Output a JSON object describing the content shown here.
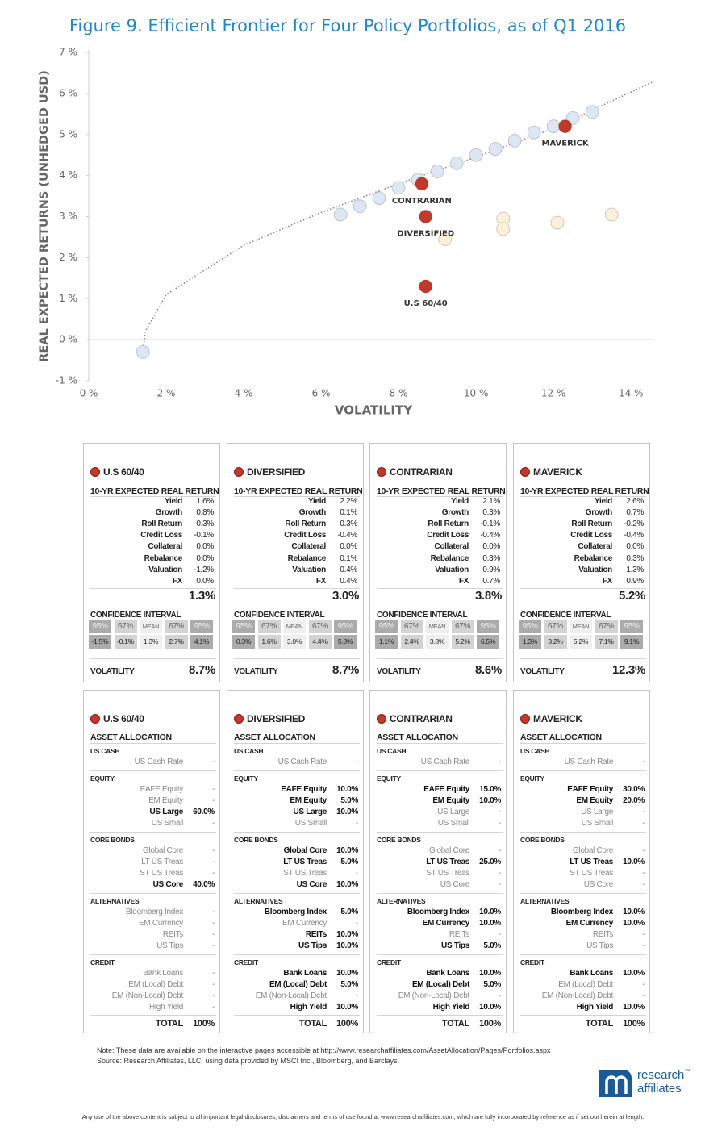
{
  "chart_data": {
    "type": "scatter",
    "title": "Figure 9. Efficient Frontier for Four Policy Portfolios, as of Q1 2016",
    "x_label": "VOLATILITY",
    "y_label": "REAL EXPECTED RETURNS (UNHEDGED USD)",
    "xlim": [
      0,
      14.6
    ],
    "ylim": [
      -1,
      7
    ],
    "xticks": [
      {
        "value": 0,
        "label": "0 %"
      },
      {
        "value": 2,
        "label": "2 %"
      },
      {
        "value": 4,
        "label": "4 %"
      },
      {
        "value": 6,
        "label": "6 %"
      },
      {
        "value": 8,
        "label": "8 %"
      },
      {
        "value": 10,
        "label": "10 %"
      },
      {
        "value": 12,
        "label": "12 %"
      },
      {
        "value": 14,
        "label": "14 %"
      }
    ],
    "yticks": [
      {
        "value": -1,
        "label": "-1 %"
      },
      {
        "value": 0,
        "label": "0 %"
      },
      {
        "value": 1,
        "label": "1 %"
      },
      {
        "value": 2,
        "label": "2 %"
      },
      {
        "value": 3,
        "label": "3 %"
      },
      {
        "value": 4,
        "label": "4 %"
      },
      {
        "value": 5,
        "label": "5 %"
      },
      {
        "value": 6,
        "label": "6 %"
      },
      {
        "value": 7,
        "label": "7 %"
      }
    ],
    "grid": false,
    "series": [
      {
        "mark": "line",
        "color": "#8a8a8a",
        "x": [
          1.4,
          1.46,
          2,
          4,
          6,
          8,
          10,
          12,
          14.6
        ],
        "values": [
          -0.3,
          0.2,
          1.1,
          2.3,
          3.1,
          3.8,
          4.45,
          5.15,
          6.3
        ]
      },
      {
        "mark": "point",
        "color": "#dce7f3",
        "x": [
          1.4,
          6.5,
          7,
          7.5,
          8,
          8.5,
          9,
          9.5,
          10,
          10.5,
          11,
          11.5,
          12,
          12.5,
          13
        ],
        "values": [
          -0.3,
          3.05,
          3.25,
          3.45,
          3.7,
          3.9,
          4.1,
          4.3,
          4.5,
          4.65,
          4.85,
          5.05,
          5.2,
          5.4,
          5.55
        ]
      },
      {
        "mark": "point",
        "color": "#fdf0d8",
        "x": [
          9.2,
          10.7,
          10.7,
          12.1,
          13.5
        ],
        "values": [
          2.45,
          2.95,
          2.7,
          2.85,
          3.05
        ]
      },
      {
        "mark": "point",
        "color": "#c0392b",
        "x": [
          8.7,
          8.7,
          8.6,
          12.3
        ],
        "values": [
          1.3,
          3.0,
          3.8,
          5.2
        ],
        "labels": [
          "U.S 60/40",
          "DIVERSIFIED",
          "CONTRARIAN",
          "MAVERICK"
        ]
      }
    ]
  },
  "panels": {
    "return_heading": "10-YR EXPECTED REAL RETURN",
    "return_labels": [
      "Yield",
      "Growth",
      "Roll Return",
      "Credit Loss",
      "Collateral",
      "Rebalance",
      "Valuation",
      "FX"
    ],
    "ci_heading": "CONFIDENCE INTERVAL",
    "ci_labels": [
      "95%",
      "67%",
      "MEAN",
      "67%",
      "95%"
    ],
    "volatility_label": "VOLATILITY",
    "allocation_heading": "ASSET ALLOCATION",
    "total_label": "TOTAL",
    "groups": [
      {
        "name": "US CASH",
        "items": [
          "US Cash Rate"
        ]
      },
      {
        "name": "EQUITY",
        "items": [
          "EAFE Equity",
          "EM Equity",
          "US Large",
          "US Small"
        ]
      },
      {
        "name": "CORE BONDS",
        "items": [
          "Global Core",
          "LT US Treas",
          "ST US Treas",
          "US Core"
        ]
      },
      {
        "name": "ALTERNATIVES",
        "items": [
          "Bloomberg Index",
          "EM Currency",
          "REITs",
          "US Tips"
        ]
      },
      {
        "name": "CREDIT",
        "items": [
          "Bank Loans",
          "EM (Local) Debt",
          "EM (Non-Local) Debt",
          "High Yield"
        ]
      }
    ],
    "portfolios": [
      {
        "name": "U.S 60/40",
        "returns": [
          "1.6%",
          "0.8%",
          "0.3%",
          "-0.1%",
          "0.0%",
          "0.0%",
          "-1.2%",
          "0.0%"
        ],
        "total": "1.3%",
        "ci": [
          "-1.5%",
          "-0.1%",
          "1.3%",
          "2.7%",
          "4.1%"
        ],
        "volatility": "8.7%",
        "allocation": [
          [
            "-"
          ],
          [
            "-",
            "-",
            "60.0%",
            "-"
          ],
          [
            "-",
            "-",
            "-",
            "40.0%"
          ],
          [
            "-",
            "-",
            "-",
            "-"
          ],
          [
            "-",
            "-",
            "-",
            "-"
          ]
        ],
        "allocation_total": "100%"
      },
      {
        "name": "DIVERSIFIED",
        "returns": [
          "2.2%",
          "0.1%",
          "0.3%",
          "-0.4%",
          "0.0%",
          "0.1%",
          "0.4%",
          "0.4%"
        ],
        "total": "3.0%",
        "ci": [
          "0.3%",
          "1.6%",
          "3.0%",
          "4.4%",
          "5.8%"
        ],
        "volatility": "8.7%",
        "allocation": [
          [
            "-"
          ],
          [
            "10.0%",
            "5.0%",
            "10.0%",
            "-"
          ],
          [
            "10.0%",
            "5.0%",
            "-",
            "10.0%"
          ],
          [
            "5.0%",
            "-",
            "10.0%",
            "10.0%"
          ],
          [
            "10.0%",
            "5.0%",
            "-",
            "10.0%"
          ]
        ],
        "allocation_total": "100%"
      },
      {
        "name": "CONTRARIAN",
        "returns": [
          "2.1%",
          "0.3%",
          "-0.1%",
          "-0.4%",
          "0.0%",
          "0.3%",
          "0.9%",
          "0.7%"
        ],
        "total": "3.8%",
        "ci": [
          "1.1%",
          "2.4%",
          "3.8%",
          "5.2%",
          "6.5%"
        ],
        "volatility": "8.6%",
        "allocation": [
          [
            "-"
          ],
          [
            "15.0%",
            "10.0%",
            "-",
            "-"
          ],
          [
            "-",
            "25.0%",
            "-",
            "-"
          ],
          [
            "10.0%",
            "10.0%",
            "-",
            "5.0%"
          ],
          [
            "10.0%",
            "5.0%",
            "-",
            "10.0%"
          ]
        ],
        "allocation_total": "100%"
      },
      {
        "name": "MAVERICK",
        "returns": [
          "2.6%",
          "0.7%",
          "-0.2%",
          "-0.4%",
          "0.0%",
          "0.3%",
          "1.3%",
          "0.9%"
        ],
        "total": "5.2%",
        "ci": [
          "1.3%",
          "3.2%",
          "5.2%",
          "7.1%",
          "9.1%"
        ],
        "volatility": "12.3%",
        "allocation": [
          [
            "-"
          ],
          [
            "30.0%",
            "20.0%",
            "-",
            "-"
          ],
          [
            "-",
            "10.0%",
            "-",
            "-"
          ],
          [
            "10.0%",
            "10.0%",
            "-",
            "-"
          ],
          [
            "10.0%",
            "-",
            "-",
            "10.0%"
          ]
        ],
        "allocation_total": "100%"
      }
    ]
  },
  "footer": {
    "note": "Note: These data are available on the interactive pages accessible at http://www.researchaffiliates.com/AssetAllocation/Pages/Portfolios.aspx",
    "source": "Source: Research Affiliates, LLC, using data provided by MSCI Inc., Bloomberg, and Barclays.",
    "logo_line1": "research",
    "logo_tm": "™",
    "logo_line2": "affiliates",
    "disclaimer": "Any use of the above content is subject to all important legal disclosures, disclaimers and terms of use found at www.researchaffiliates.com, which are fully incorporated by reference as if set out herein at length."
  }
}
